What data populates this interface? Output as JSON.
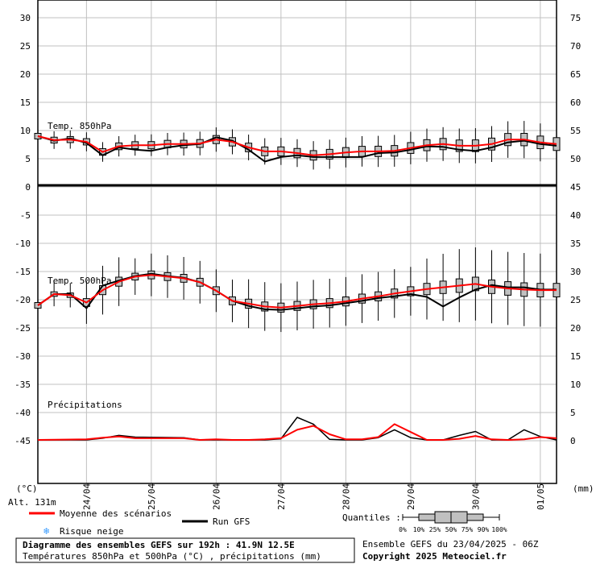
{
  "chart_data": {
    "type": "line",
    "title": "Diagramme des ensembles GEFS sur 192h : 41.9N 12.5E",
    "subtitle": "Températures 850hPa et 500hPa (°C) , précipitations (mm)",
    "run_info": "Ensemble GEFS du 23/04/2025 - 06Z",
    "copyright": "Copyright 2025 Meteociel.fr",
    "altitude": "Alt. 131m",
    "left_unit": "(°C)",
    "right_unit": "(mm)",
    "left_ticks": [
      "30",
      "25",
      "20",
      "15",
      "10",
      "5",
      "0",
      "-5",
      "-10",
      "-15",
      "-20",
      "-25",
      "-30",
      "-35",
      "-40",
      "-45"
    ],
    "right_ticks": [
      "75",
      "70",
      "65",
      "60",
      "55",
      "50",
      "45",
      "40",
      "35",
      "30",
      "25",
      "20",
      "15",
      "10",
      "5",
      "0"
    ],
    "x_dates": [
      "24/04",
      "25/04",
      "26/04",
      "27/04",
      "28/04",
      "29/04",
      "30/04",
      "01/05"
    ],
    "panel_labels": {
      "t850": "Temp. 850hPa",
      "t500": "Temp. 500hPa",
      "precip": "Précipitations"
    },
    "legend": {
      "mean": "Moyenne des scénarios",
      "run": "Run GFS",
      "snow": "Risque neige",
      "quantiles_title": "Quantiles :",
      "quantiles": [
        "0%",
        "10%",
        "25%",
        "50%",
        "75%",
        "90%",
        "100%"
      ]
    },
    "colors": {
      "mean": "#ff0000",
      "run": "#000000",
      "box": "#c0c0c0",
      "grid": "#c0c0c0",
      "snow": "#3399ff"
    },
    "series_t850": {
      "mean_x": [
        0,
        6,
        12,
        18,
        24,
        30,
        36,
        42,
        48,
        54,
        60,
        66,
        72,
        78,
        84,
        90,
        96,
        102,
        108,
        114,
        120,
        126,
        132,
        138,
        144,
        150,
        156,
        162,
        168,
        174,
        180,
        186,
        192
      ],
      "mean_y": [
        9,
        8.3,
        8.4,
        8,
        6.2,
        7.2,
        7.4,
        7.4,
        7.6,
        7.6,
        7.7,
        8.4,
        8,
        7,
        6.3,
        6.3,
        6,
        5.6,
        5.8,
        6.1,
        6.3,
        6.3,
        6.4,
        6.9,
        7.4,
        7.6,
        7.3,
        7.3,
        7.6,
        8.4,
        8.4,
        7.9,
        7.6
      ],
      "run_x": [
        0,
        6,
        12,
        18,
        24,
        30,
        36,
        42,
        48,
        54,
        60,
        66,
        72,
        78,
        84,
        90,
        96,
        102,
        108,
        114,
        120,
        126,
        132,
        138,
        144,
        150,
        156,
        162,
        168,
        174,
        180,
        186,
        192
      ],
      "run_y": [
        9,
        8.2,
        8.6,
        7.8,
        5.6,
        7,
        6.6,
        6.4,
        7,
        7.4,
        7.6,
        8.8,
        8.2,
        6.6,
        4.5,
        5.3,
        5.6,
        5.3,
        5.3,
        5.3,
        5.3,
        6,
        6.1,
        6.6,
        7.2,
        7.1,
        6.6,
        6.4,
        7,
        7.9,
        8.2,
        7.6,
        7.3
      ]
    },
    "series_t500": {
      "mean_x": [
        0,
        6,
        12,
        18,
        24,
        30,
        36,
        42,
        48,
        54,
        60,
        66,
        72,
        78,
        84,
        90,
        96,
        102,
        108,
        114,
        120,
        126,
        132,
        138,
        144,
        150,
        156,
        162,
        168,
        174,
        180,
        186,
        192
      ],
      "mean_y": [
        -21,
        -19,
        -19.2,
        -20.5,
        -18.3,
        -16.8,
        -15.9,
        -15.6,
        -15.9,
        -16.2,
        -16.9,
        -18.4,
        -20.2,
        -20.7,
        -21.2,
        -21.4,
        -21.1,
        -20.8,
        -20.6,
        -20.3,
        -19.8,
        -19.4,
        -18.9,
        -18.5,
        -18.1,
        -17.8,
        -17.5,
        -17.2,
        -17.7,
        -18,
        -18.2,
        -18.3,
        -18.3
      ],
      "run_x": [
        0,
        6,
        12,
        18,
        24,
        30,
        36,
        42,
        48,
        54,
        60,
        66,
        72,
        78,
        84,
        90,
        96,
        102,
        108,
        114,
        120,
        126,
        132,
        138,
        144,
        150,
        156,
        162,
        168,
        174,
        180,
        186,
        192
      ],
      "run_y": [
        -21,
        -19,
        -19,
        -21.5,
        -17.5,
        -16.6,
        -15.8,
        -15.4,
        -15.8,
        -16.1,
        -16.9,
        -18.4,
        -20.2,
        -21.1,
        -21.7,
        -21.8,
        -21.5,
        -21.2,
        -21,
        -20.6,
        -20.2,
        -19.7,
        -19.4,
        -19,
        -19.5,
        -21.2,
        -19.6,
        -18.2,
        -17.4,
        -17.8,
        -17.8,
        -18.2,
        -18.2
      ],
      "box_q25": [
        -21.5,
        -19.4,
        -19.6,
        -21.2,
        -19.1,
        -17.6,
        -16.5,
        -16.3,
        -16.6,
        -16.9,
        -17.6,
        -19.1,
        -20.9,
        -21.5,
        -22,
        -22.2,
        -21.9,
        -21.6,
        -21.4,
        -21.1,
        -20.6,
        -20.2,
        -19.7,
        -19.3,
        -19.1,
        -18.9,
        -18.7,
        -18.4,
        -18.9,
        -19.2,
        -19.4,
        -19.5,
        -19.5
      ],
      "box_q75": [
        -20.5,
        -18.6,
        -18.8,
        -19.8,
        -17.5,
        -16,
        -15.3,
        -14.9,
        -15.2,
        -15.5,
        -16.2,
        -17.7,
        -19.5,
        -19.9,
        -20.4,
        -20.6,
        -20.3,
        -20,
        -19.8,
        -19.5,
        -19,
        -18.6,
        -18.1,
        -17.7,
        -17.1,
        -16.7,
        -16.3,
        -16,
        -16.5,
        -16.8,
        -17,
        -17.1,
        -17.1
      ]
    },
    "series_precip": {
      "mean_x": [
        0,
        18,
        24,
        30,
        36,
        54,
        60,
        66,
        72,
        78,
        84,
        90,
        96,
        102,
        108,
        114,
        120,
        126,
        132,
        138,
        144,
        150,
        156,
        162,
        168,
        174,
        180,
        186,
        192
      ],
      "mean_y": [
        0,
        0.1,
        0.4,
        0.6,
        0.3,
        0.3,
        0,
        0.1,
        0,
        0,
        0.1,
        0.3,
        1.8,
        2.5,
        1,
        0.1,
        0.1,
        0.5,
        2.8,
        1.4,
        0,
        0,
        0.2,
        0.7,
        0.1,
        0,
        0.1,
        0.5,
        0.3
      ],
      "run_x": [
        0,
        18,
        24,
        30,
        36,
        54,
        60,
        66,
        72,
        78,
        84,
        90,
        96,
        102,
        108,
        114,
        120,
        126,
        132,
        138,
        144,
        150,
        156,
        162,
        168,
        174,
        180,
        186,
        192
      ],
      "run_y": [
        0,
        0,
        0.3,
        0.8,
        0.5,
        0.4,
        0,
        0,
        0,
        0,
        0,
        0.2,
        4,
        2.8,
        0.1,
        0,
        0,
        0.4,
        1.8,
        0.4,
        0,
        0,
        0.8,
        1.5,
        0,
        0,
        1.8,
        0.6,
        0
      ]
    }
  }
}
